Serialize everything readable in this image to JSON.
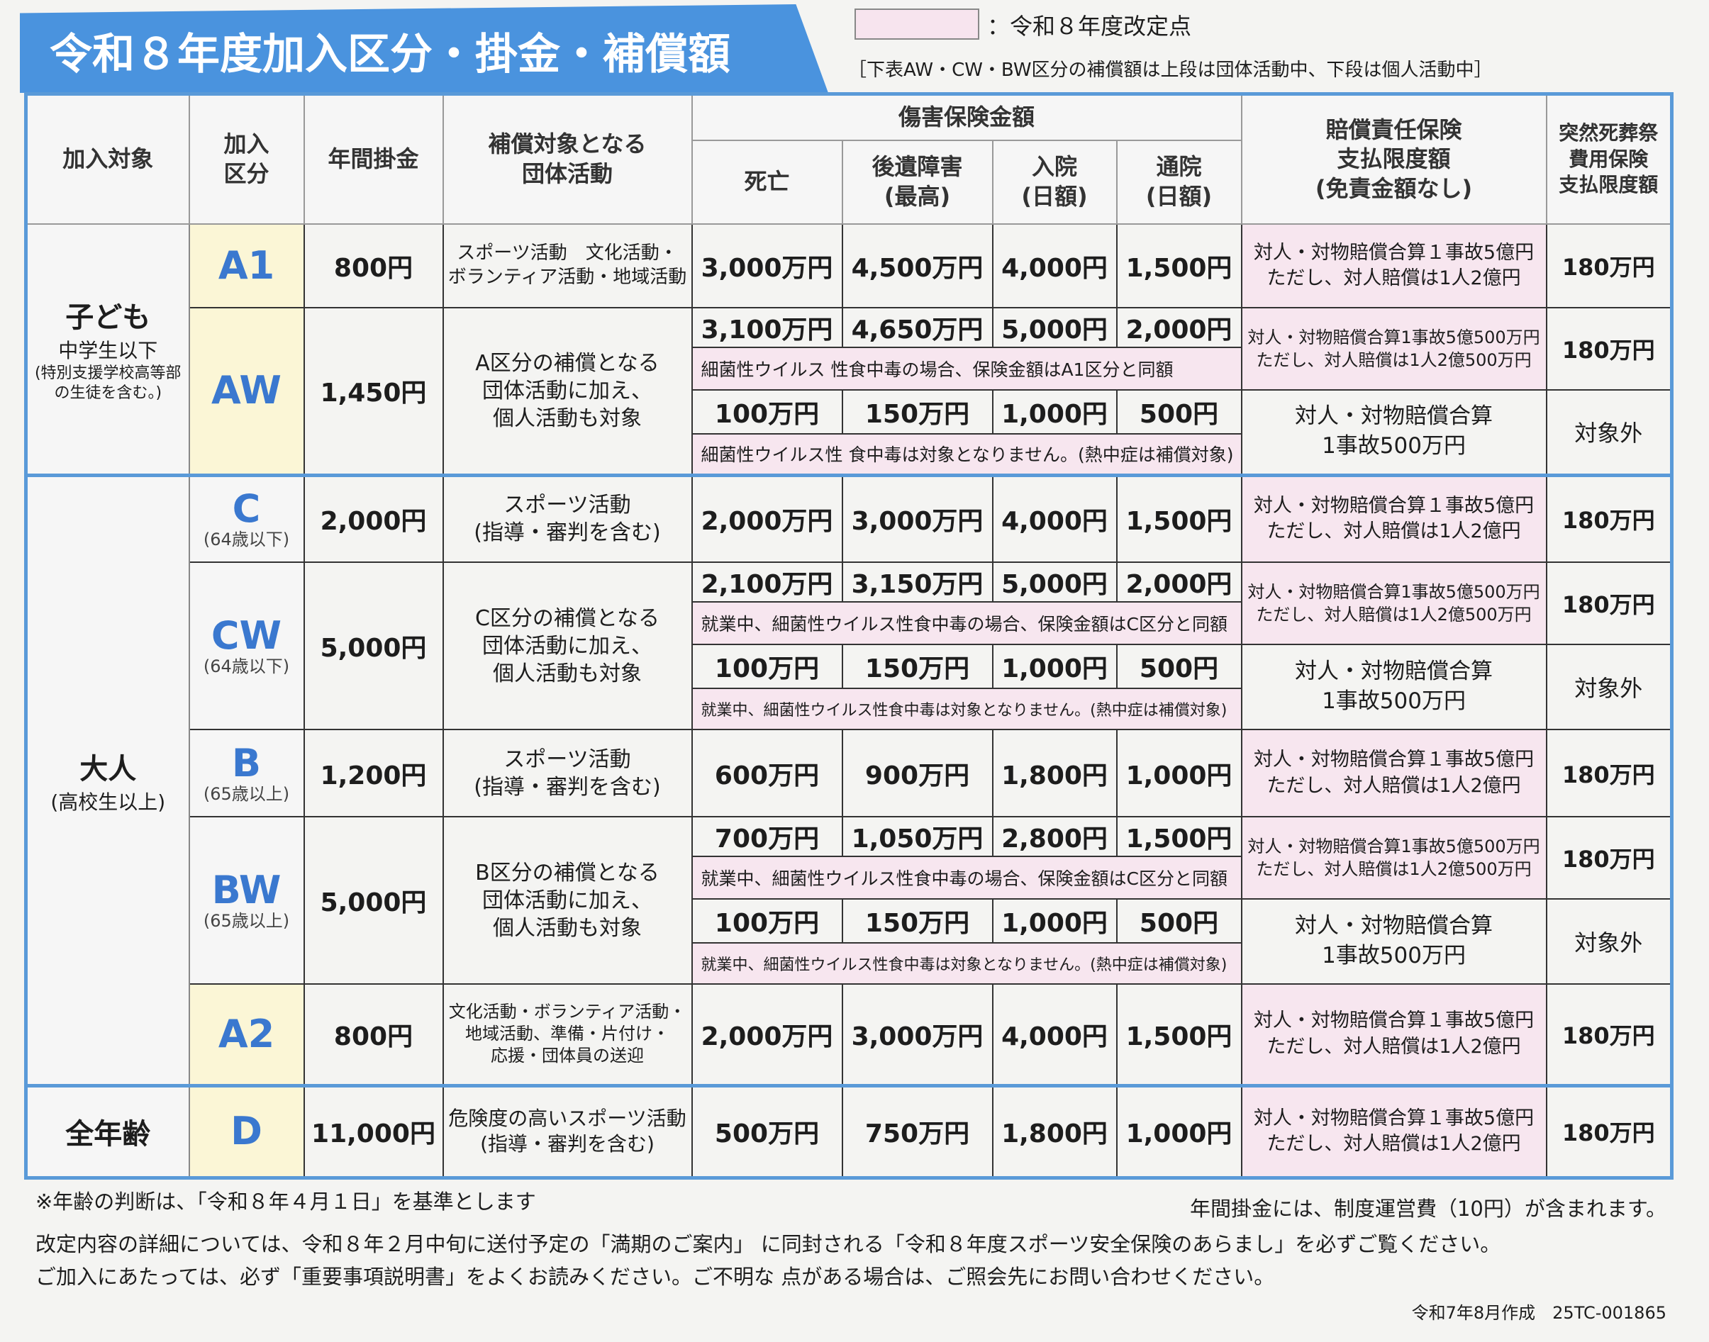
{
  "title": "令和８年度加入区分・掛金・補償額",
  "legend": {
    "swatch_color": "#f7e4ee",
    "text": "：令和８年度改定点",
    "note": "［下表AW・CW・BW区分の補償額は上段は団体活動中、下段は個人活動中］"
  },
  "header": {
    "target": "加入対象",
    "category": "加入\n区分",
    "premium": "年間掛金",
    "activity": "補償対象となる\n団体活動",
    "injury": "傷害保険金額",
    "death": "死亡",
    "disability": "後遺障害\n(最高)",
    "hospital": "入院\n(日額)",
    "outpatient": "通院\n(日額)",
    "liability": "賠償責任保険\n支払限度額\n(免責金額なし)",
    "funeral": "突然死葬祭\n費用保険\n支払限度額"
  },
  "groups": [
    {
      "label": "子ども",
      "sub": "中学生以下",
      "note": "(特別支援学校高等部の生徒を含む。)"
    },
    {
      "label": "大人",
      "sub": "(高校生以上)"
    },
    {
      "label": "全年齢"
    }
  ],
  "rows": [
    {
      "group": 0,
      "code": "A1",
      "age": "",
      "code_bg": "#fbf6d6",
      "premium": "800円",
      "activity": "スポーツ活動　文化活動・\nボランティア活動・地域活動",
      "upper": {
        "death": "3,000万円",
        "disability": "4,500万円",
        "hospital": "4,000円",
        "outpatient": "1,500円",
        "liability": "対人・対物賠償合算１事故5億円\nただし、対人賠償は1人2億円",
        "funeral": "180万円"
      }
    },
    {
      "group": 0,
      "code": "AW",
      "age": "",
      "code_bg": "#fbf6d6",
      "premium": "1,450円",
      "activity": "A区分の補償となる\n団体活動に加え、\n個人活動も対象",
      "upper": {
        "death": "3,100万円",
        "disability": "4,650万円",
        "hospital": "5,000円",
        "outpatient": "2,000円",
        "note": "細菌性ウイルス 性食中毒の場合、保険金額はA1区分と同額",
        "liability": "対人・対物賠償合算1事故5億500万円\nただし、対人賠償は1人2億500万円",
        "funeral": "180万円"
      },
      "lower": {
        "death": "100万円",
        "disability": "150万円",
        "hospital": "1,000円",
        "outpatient": "500円",
        "note": "細菌性ウイルス性 食中毒は対象となりません。(熱中症は補償対象)",
        "liability": "対人・対物賠償合算\n1事故500万円",
        "funeral": "対象外"
      }
    },
    {
      "group": 1,
      "code": "C",
      "age": "(64歳以下)",
      "code_bg": "#f6f6f6",
      "premium": "2,000円",
      "activity": "スポーツ活動\n(指導・審判を含む)",
      "upper": {
        "death": "2,000万円",
        "disability": "3,000万円",
        "hospital": "4,000円",
        "outpatient": "1,500円",
        "liability": "対人・対物賠償合算１事故5億円\nただし、対人賠償は1人2億円",
        "funeral": "180万円"
      }
    },
    {
      "group": 1,
      "code": "CW",
      "age": "(64歳以下)",
      "code_bg": "#f6f6f6",
      "premium": "5,000円",
      "activity": "C区分の補償となる\n団体活動に加え、\n個人活動も対象",
      "upper": {
        "death": "2,100万円",
        "disability": "3,150万円",
        "hospital": "5,000円",
        "outpatient": "2,000円",
        "note": "就業中、細菌性ウイルス性食中毒の場合、保険金額はC区分と同額",
        "liability": "対人・対物賠償合算1事故5億500万円\nただし、対人賠償は1人2億500万円",
        "funeral": "180万円"
      },
      "lower": {
        "death": "100万円",
        "disability": "150万円",
        "hospital": "1,000円",
        "outpatient": "500円",
        "note": "就業中、細菌性ウイルス性食中毒は対象となりません。(熱中症は補償対象)",
        "liability": "対人・対物賠償合算\n1事故500万円",
        "funeral": "対象外"
      }
    },
    {
      "group": 1,
      "code": "B",
      "age": "(65歳以上)",
      "code_bg": "#f6f6f6",
      "premium": "1,200円",
      "activity": "スポーツ活動\n(指導・審判を含む)",
      "upper": {
        "death": "600万円",
        "disability": "900万円",
        "hospital": "1,800円",
        "outpatient": "1,000円",
        "liability": "対人・対物賠償合算１事故5億円\nただし、対人賠償は1人2億円",
        "funeral": "180万円"
      }
    },
    {
      "group": 1,
      "code": "BW",
      "age": "(65歳以上)",
      "code_bg": "#f6f6f6",
      "premium": "5,000円",
      "activity": "B区分の補償となる\n団体活動に加え、\n個人活動も対象",
      "upper": {
        "death": "700万円",
        "disability": "1,050万円",
        "hospital": "2,800円",
        "outpatient": "1,500円",
        "note": "就業中、細菌性ウイルス性食中毒の場合、保険金額はC区分と同額",
        "liability": "対人・対物賠償合算1事故5億500万円\nただし、対人賠償は1人2億500万円",
        "funeral": "180万円"
      },
      "lower": {
        "death": "100万円",
        "disability": "150万円",
        "hospital": "1,000円",
        "outpatient": "500円",
        "note": "就業中、細菌性ウイルス性食中毒は対象となりません。(熱中症は補償対象)",
        "liability": "対人・対物賠償合算\n1事故500万円",
        "funeral": "対象外"
      }
    },
    {
      "group": 1,
      "code": "A2",
      "age": "",
      "code_bg": "#fbf6d6",
      "premium": "800円",
      "activity": "文化活動・ボランティア活動・\n地域活動、準備・片付け・\n応援・団体員の送迎",
      "upper": {
        "death": "2,000万円",
        "disability": "3,000万円",
        "hospital": "4,000円",
        "outpatient": "1,500円",
        "liability": "対人・対物賠償合算１事故5億円\nただし、対人賠償は1人2億円",
        "funeral": "180万円"
      }
    },
    {
      "group": 2,
      "code": "D",
      "age": "",
      "code_bg": "#fbf6d6",
      "premium": "11,000円",
      "activity": "危険度の高いスポーツ活動\n(指導・審判を含む)",
      "upper": {
        "death": "500万円",
        "disability": "750万円",
        "hospital": "1,800円",
        "outpatient": "1,000円",
        "liability": "対人・対物賠償合算１事故5億円\nただし、対人賠償は1人2億円",
        "funeral": "180万円"
      }
    }
  ],
  "footer": {
    "age_note": "※年齢の判断は、「令和８年４月１日」を基準とします",
    "fee_note": "年間掛金には、制度運営費（10円）が含まれます。",
    "line1": "改定内容の詳細については、令和８年２月中旬に送付予定の「満期のご案内」 に同封される「令和８年度スポーツ安全保険のあらまし」を必ずご覧ください。",
    "line2": "ご加入にあたっては、必ず「重要事項説明書」をよくお読みください。ご不明な 点がある場合は、ご照会先にお問い合わせください。",
    "code": "令和7年8月作成　25TC-001865"
  }
}
